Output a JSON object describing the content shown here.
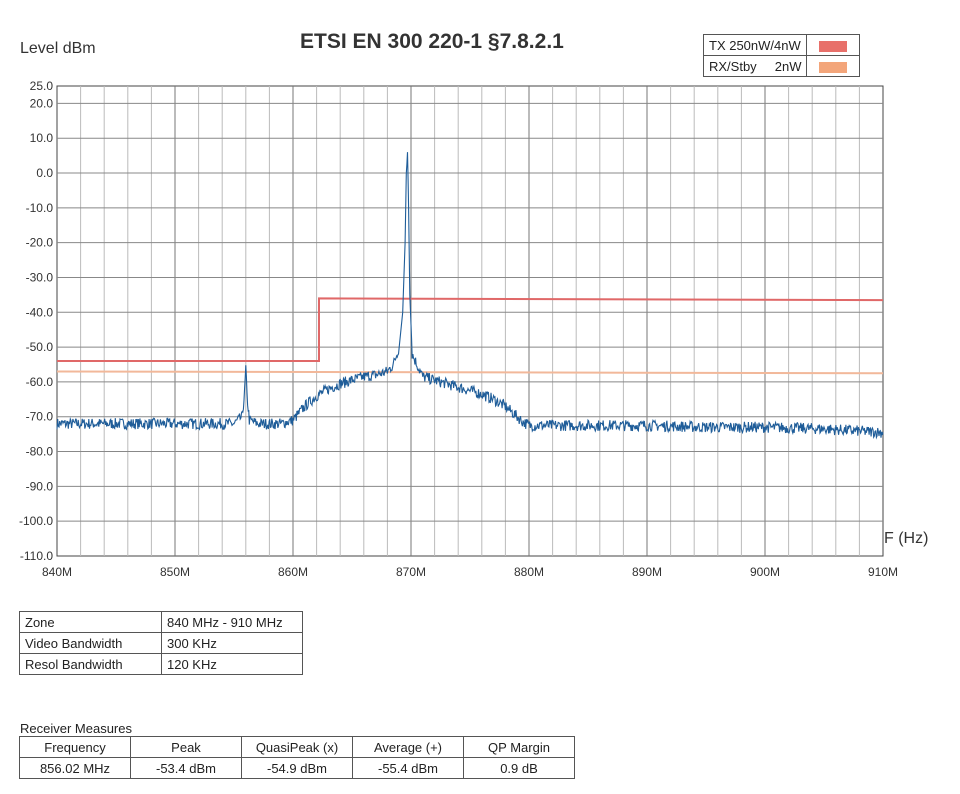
{
  "header": {
    "title": "ETSI EN 300 220-1 §7.8.2.1",
    "y_axis_label": "Level  dBm",
    "x_axis_label": "F (Hz)"
  },
  "legend": [
    {
      "label": "TX 250nW/4nW",
      "color": "#e8706a"
    },
    {
      "label": "RX/Stby     2nW",
      "color": "#f3a57a"
    }
  ],
  "chart_data": {
    "type": "line",
    "title": "ETSI EN 300 220-1 §7.8.2.1",
    "xlabel": "F (Hz)",
    "ylabel": "Level  dBm",
    "xlim": [
      840,
      910
    ],
    "ylim": [
      -110,
      25
    ],
    "x_ticks": [
      840,
      850,
      860,
      870,
      880,
      890,
      900,
      910
    ],
    "x_tick_labels": [
      "840M",
      "850M",
      "860M",
      "870M",
      "880M",
      "890M",
      "900M",
      "910M"
    ],
    "y_ticks": [
      25,
      20,
      10,
      0,
      -10,
      -20,
      -30,
      -40,
      -50,
      -60,
      -70,
      -80,
      -90,
      -100,
      -110
    ],
    "y_tick_labels": [
      "25.0",
      "20.0",
      "10.0",
      "0.0",
      "-10.0",
      "-20.0",
      "-30.0",
      "-40.0",
      "-50.0",
      "-60.0",
      "-70.0",
      "-80.0",
      "-90.0",
      "-100.0",
      "-110.0"
    ],
    "grid": true,
    "series": [
      {
        "name": "TX 250nW/4nW",
        "color": "#e06868",
        "x": [
          840,
          862.2,
          862.2,
          910
        ],
        "y": [
          -54,
          -54,
          -36,
          -36.5
        ]
      },
      {
        "name": "RX/Stby     2nW",
        "color": "#f2b89a",
        "x": [
          840,
          910
        ],
        "y": [
          -57,
          -57.5
        ]
      },
      {
        "color": "#1f5d99",
        "x": [
          840,
          845,
          850,
          855,
          855.7,
          855.9,
          856.0,
          856.1,
          856.3,
          857,
          859,
          860,
          860.5,
          861,
          861.5,
          862,
          862.5,
          863,
          864,
          865,
          866,
          867,
          867.5,
          868,
          868.5,
          869,
          869.3,
          869.5,
          869.6,
          869.7,
          869.8,
          869.9,
          870.1,
          870.5,
          871,
          872,
          873,
          874,
          875,
          876,
          877,
          877.5,
          878,
          878.5,
          879,
          879.5,
          880,
          885,
          890,
          895,
          900,
          905,
          910
        ],
        "y": [
          -72,
          -72,
          -72,
          -72,
          -70,
          -63,
          -56,
          -64,
          -71,
          -72,
          -72,
          -71,
          -69,
          -67,
          -65.5,
          -64,
          -63,
          -62,
          -60.5,
          -59.5,
          -58.5,
          -58,
          -57.5,
          -57,
          -55,
          -50,
          -40,
          -20,
          0,
          6,
          -10,
          -35,
          -52,
          -55,
          -58.5,
          -59.5,
          -60.5,
          -61.5,
          -62.5,
          -63.5,
          -65,
          -66,
          -67,
          -68.5,
          -70,
          -71.5,
          -72.5,
          -72.5,
          -72.5,
          -73,
          -73,
          -73.5,
          -74.5
        ]
      }
    ]
  },
  "zone_table": [
    {
      "key": "Zone",
      "value": "840 MHz - 910 MHz"
    },
    {
      "key": "Video Bandwidth",
      "value": "300 KHz"
    },
    {
      "key": "Resol Bandwidth",
      "value": "120 KHz"
    }
  ],
  "measures": {
    "caption": "Receiver Measures",
    "headers": [
      "Frequency",
      "Peak",
      "QuasiPeak (x)",
      "Average (+)",
      "QP Margin"
    ],
    "row": [
      "856.02 MHz",
      "-53.4 dBm",
      "-54.9 dBm",
      "-55.4 dBm",
      "0.9 dB"
    ]
  }
}
